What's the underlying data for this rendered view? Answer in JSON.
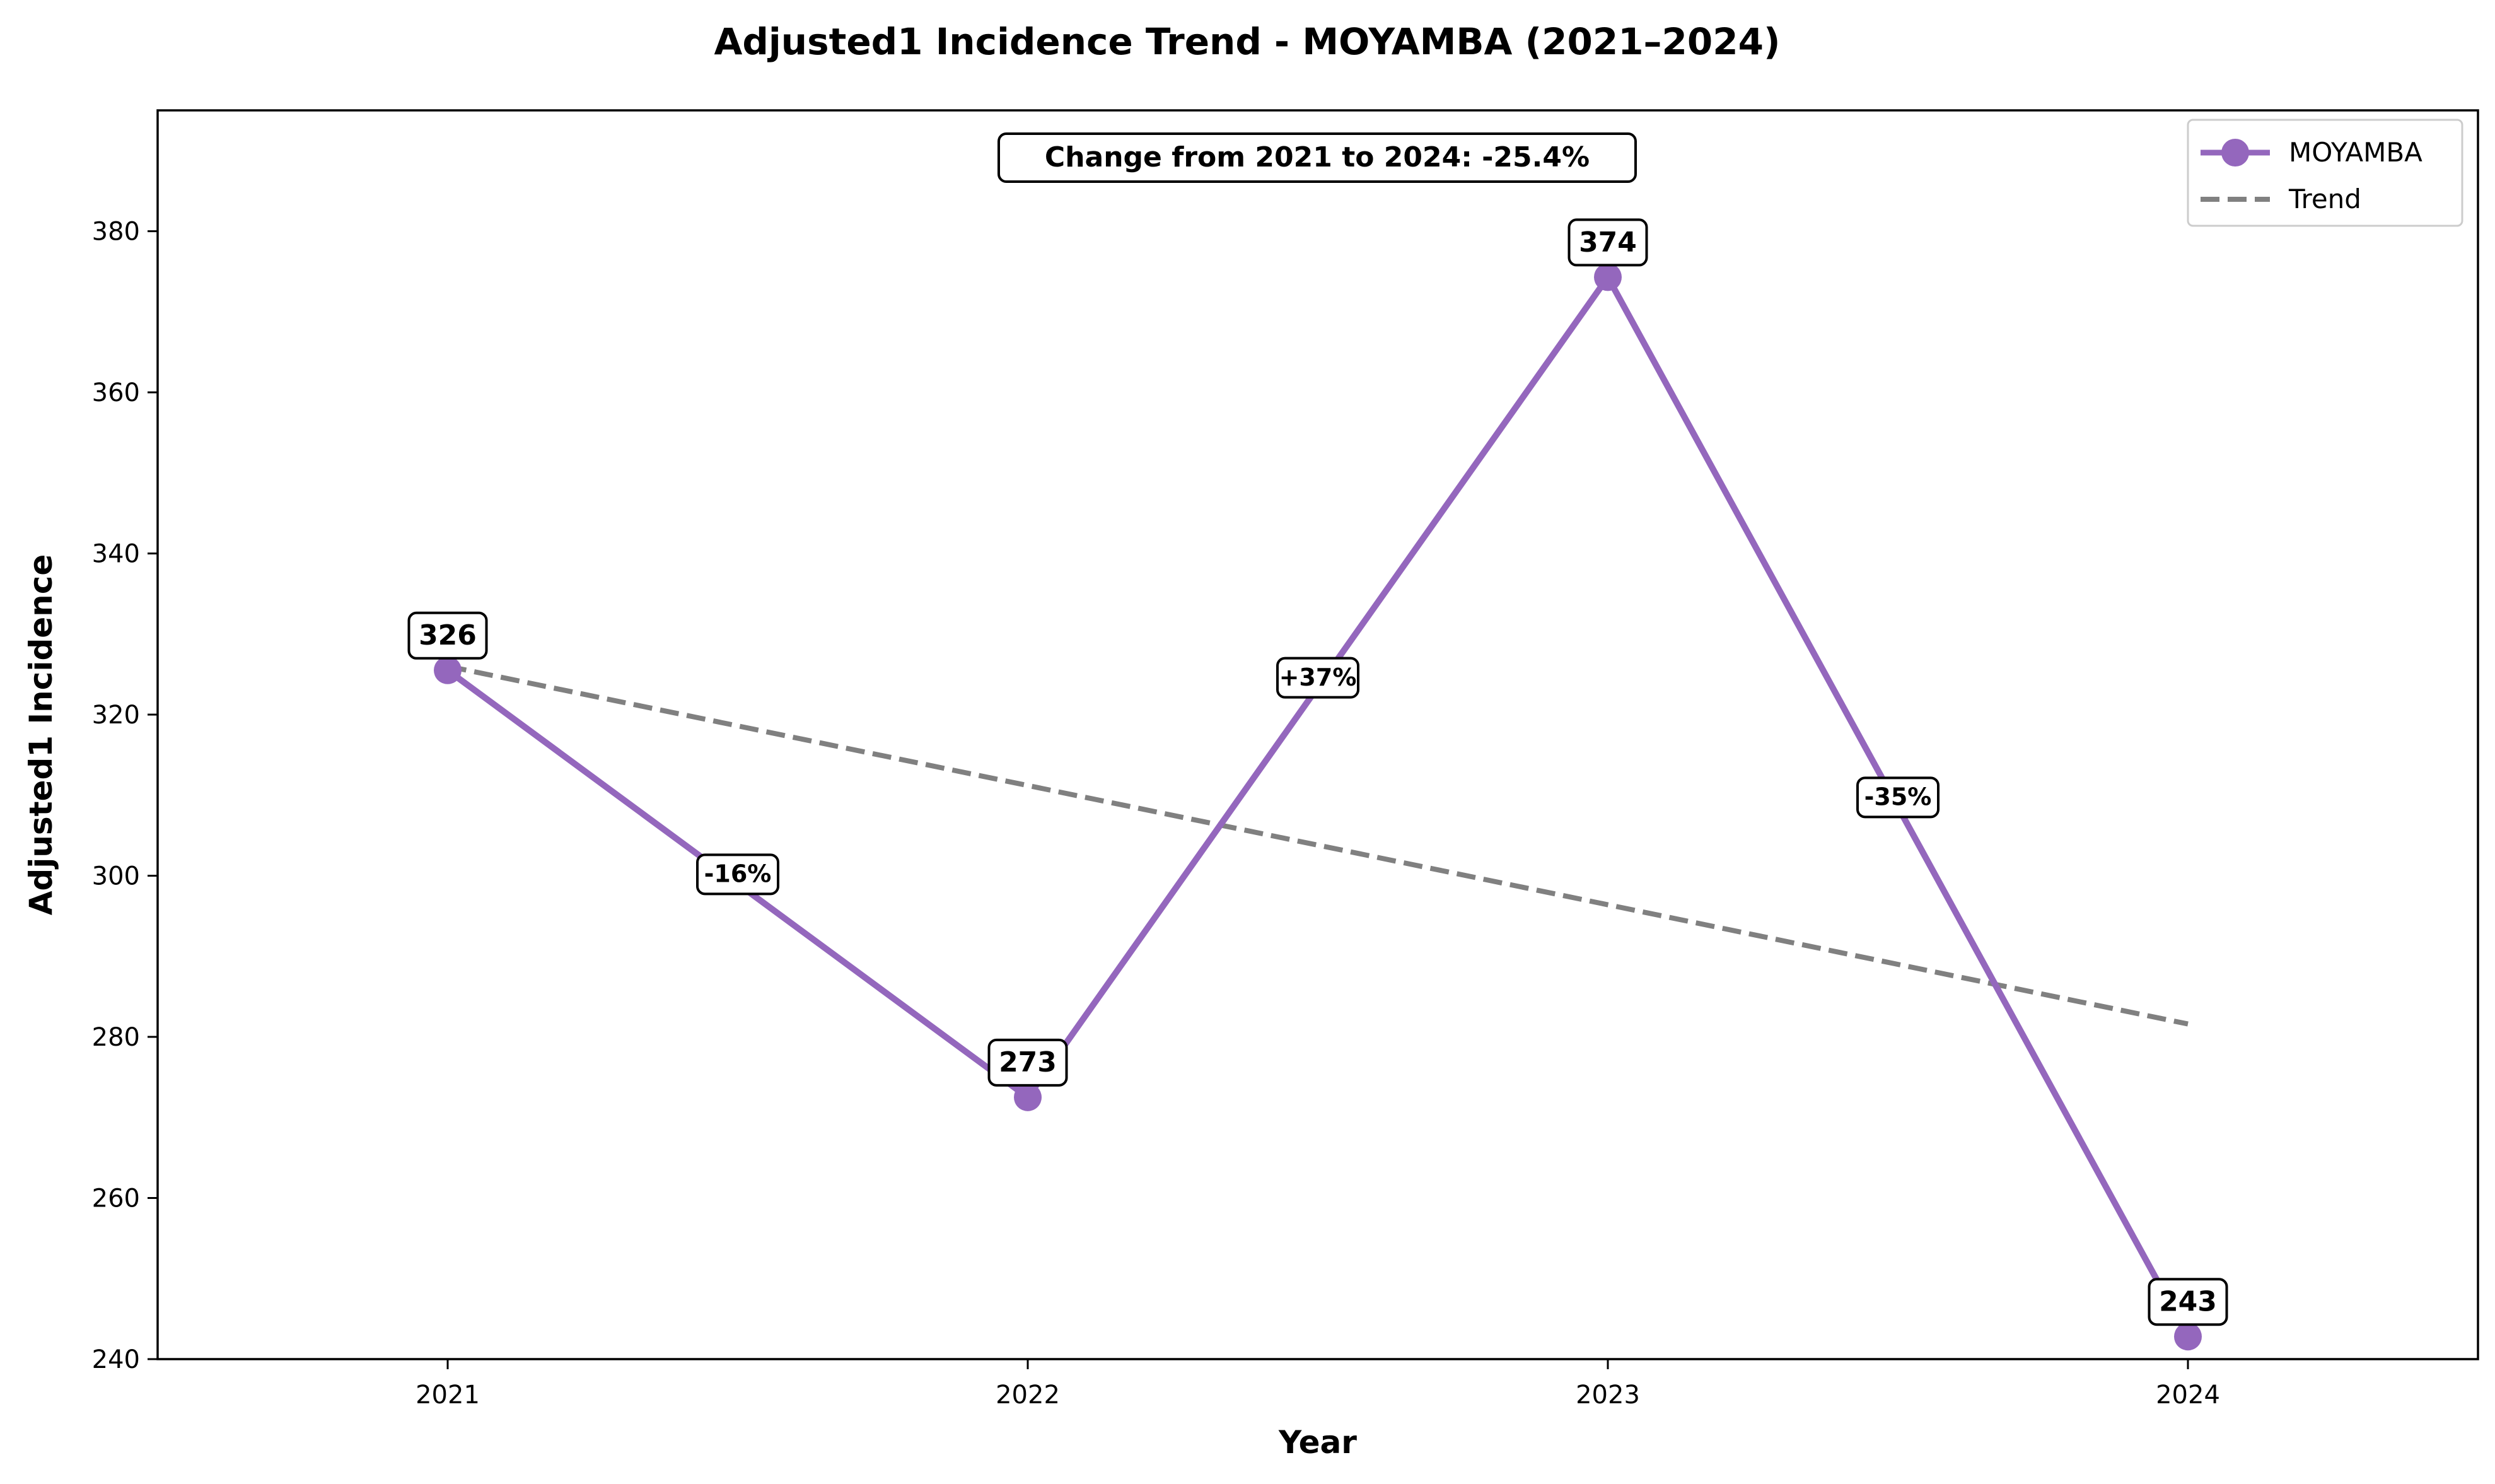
{
  "chart_data": {
    "type": "line",
    "title": "Adjusted1 Incidence Trend - MOYAMBA (2021–2024)",
    "xlabel": "Year",
    "ylabel": "Adjusted1 Incidence",
    "x": [
      "2021",
      "2022",
      "2023",
      "2024"
    ],
    "series": [
      {
        "name": "MOYAMBA",
        "values": [
          325.5,
          272.5,
          374.3,
          242.8
        ],
        "value_labels": [
          "326",
          "273",
          "374",
          "243"
        ],
        "color": "#9467bd",
        "marker": "circle"
      },
      {
        "name": "Trend",
        "values": [
          326.0,
          311.2,
          296.4,
          281.6
        ],
        "color": "#808080",
        "style": "dashed"
      }
    ],
    "segment_changes": [
      "-16%",
      "+37%",
      "-35%"
    ],
    "annotation": "Change from 2021 to 2024: -25.4%",
    "xlim": [
      2020.5,
      2024.5
    ],
    "ylim": [
      240,
      395
    ],
    "yticks": [
      240,
      260,
      280,
      300,
      320,
      340,
      360,
      380
    ],
    "grid": false,
    "legend_position": "top-right"
  }
}
